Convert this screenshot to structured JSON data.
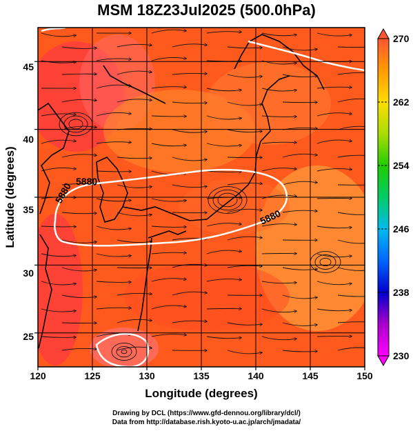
{
  "title": "MSM 18Z23Jul2025 (500.0hPa)",
  "colors": {
    "field_main": "#ff5a1e",
    "field_warm": "#ff3c3c",
    "field_light": "#ff9a3a",
    "field_pink": "#ff7070",
    "contour": "#ffffff",
    "coast": "#000000",
    "streamline": "#111111"
  },
  "chart_data": {
    "type": "heatmap",
    "xlabel": "Longitude (degrees)",
    "ylabel": "Latitude  (degrees)",
    "xlim": [
      120,
      150
    ],
    "ylim": [
      22.5,
      47.5
    ],
    "xticks": [
      "120",
      "125",
      "130",
      "135",
      "140",
      "145",
      "150"
    ],
    "yticks": [
      "25",
      "30",
      "35",
      "40",
      "45"
    ],
    "colorbar": {
      "min": 230,
      "max": 270,
      "ticks": [
        "270",
        "262",
        "254",
        "246",
        "238",
        "230"
      ]
    },
    "contour_labels": [
      "5880",
      "5880",
      "5880"
    ],
    "grid": true
  },
  "footer": {
    "line1": "Drawing by DCL (https://www.gfd-dennou.org/library/dcl/)",
    "line2": "Data from http://database.rish.kyoto-u.ac.jp/arch/jmadata/"
  }
}
